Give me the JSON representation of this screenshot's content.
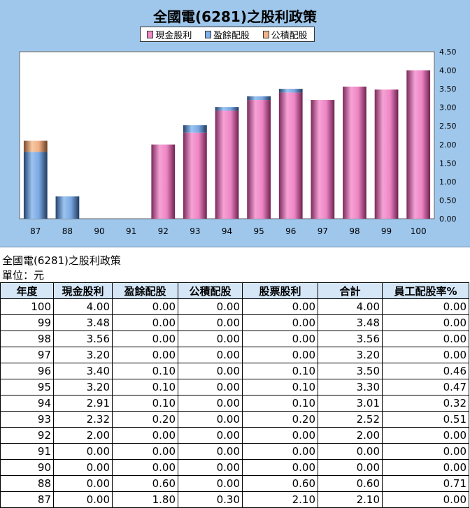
{
  "chart_data": {
    "type": "bar",
    "stacked": true,
    "title": "全國電(6281)之股利政策",
    "categories": [
      "87",
      "88",
      "90",
      "91",
      "92",
      "93",
      "94",
      "95",
      "96",
      "97",
      "98",
      "99",
      "100"
    ],
    "series": [
      {
        "name": "現金股利",
        "color": "#f08cc8",
        "values": [
          0.0,
          0.0,
          0.0,
          0.0,
          2.0,
          2.32,
          2.91,
          3.2,
          3.4,
          3.2,
          3.56,
          3.48,
          4.0
        ]
      },
      {
        "name": "盈餘配股",
        "color": "#7fb0e8",
        "values": [
          1.8,
          0.6,
          0.0,
          0.0,
          0.0,
          0.2,
          0.1,
          0.1,
          0.1,
          0.0,
          0.0,
          0.0,
          0.0
        ]
      },
      {
        "name": "公積配股",
        "color": "#f0b48c",
        "values": [
          0.3,
          0.0,
          0.0,
          0.0,
          0.0,
          0.0,
          0.0,
          0.0,
          0.0,
          0.0,
          0.0,
          0.0,
          0.0
        ]
      }
    ],
    "ylim": [
      0,
      4.5
    ],
    "yticks": [
      "0.00",
      "0.50",
      "1.00",
      "1.50",
      "2.00",
      "2.50",
      "3.00",
      "3.50",
      "4.00",
      "4.50"
    ],
    "y_axis_side": "right",
    "legend_position": "top-center",
    "grid": false
  },
  "table": {
    "title": "全國電(6281)之股利政策",
    "unit": "單位：元",
    "headers": [
      "年度",
      "現金股利",
      "盈餘配股",
      "公積配股",
      "股票股利",
      "合計",
      "員工配股率%"
    ],
    "rows": [
      [
        "100",
        "4.00",
        "0.00",
        "0.00",
        "0.00",
        "4.00",
        "0.00"
      ],
      [
        "99",
        "3.48",
        "0.00",
        "0.00",
        "0.00",
        "3.48",
        "0.00"
      ],
      [
        "98",
        "3.56",
        "0.00",
        "0.00",
        "0.00",
        "3.56",
        "0.00"
      ],
      [
        "97",
        "3.20",
        "0.00",
        "0.00",
        "0.00",
        "3.20",
        "0.00"
      ],
      [
        "96",
        "3.40",
        "0.10",
        "0.00",
        "0.10",
        "3.50",
        "0.46"
      ],
      [
        "95",
        "3.20",
        "0.10",
        "0.00",
        "0.10",
        "3.30",
        "0.47"
      ],
      [
        "94",
        "2.91",
        "0.10",
        "0.00",
        "0.10",
        "3.01",
        "0.32"
      ],
      [
        "93",
        "2.32",
        "0.20",
        "0.00",
        "0.20",
        "2.52",
        "0.51"
      ],
      [
        "92",
        "2.00",
        "0.00",
        "0.00",
        "0.00",
        "2.00",
        "0.00"
      ],
      [
        "91",
        "0.00",
        "0.00",
        "0.00",
        "0.00",
        "0.00",
        "0.00"
      ],
      [
        "90",
        "0.00",
        "0.00",
        "0.00",
        "0.00",
        "0.00",
        "0.00"
      ],
      [
        "88",
        "0.00",
        "0.60",
        "0.00",
        "0.60",
        "0.60",
        "0.71"
      ],
      [
        "87",
        "0.00",
        "1.80",
        "0.30",
        "2.10",
        "2.10",
        "0.00"
      ]
    ]
  }
}
